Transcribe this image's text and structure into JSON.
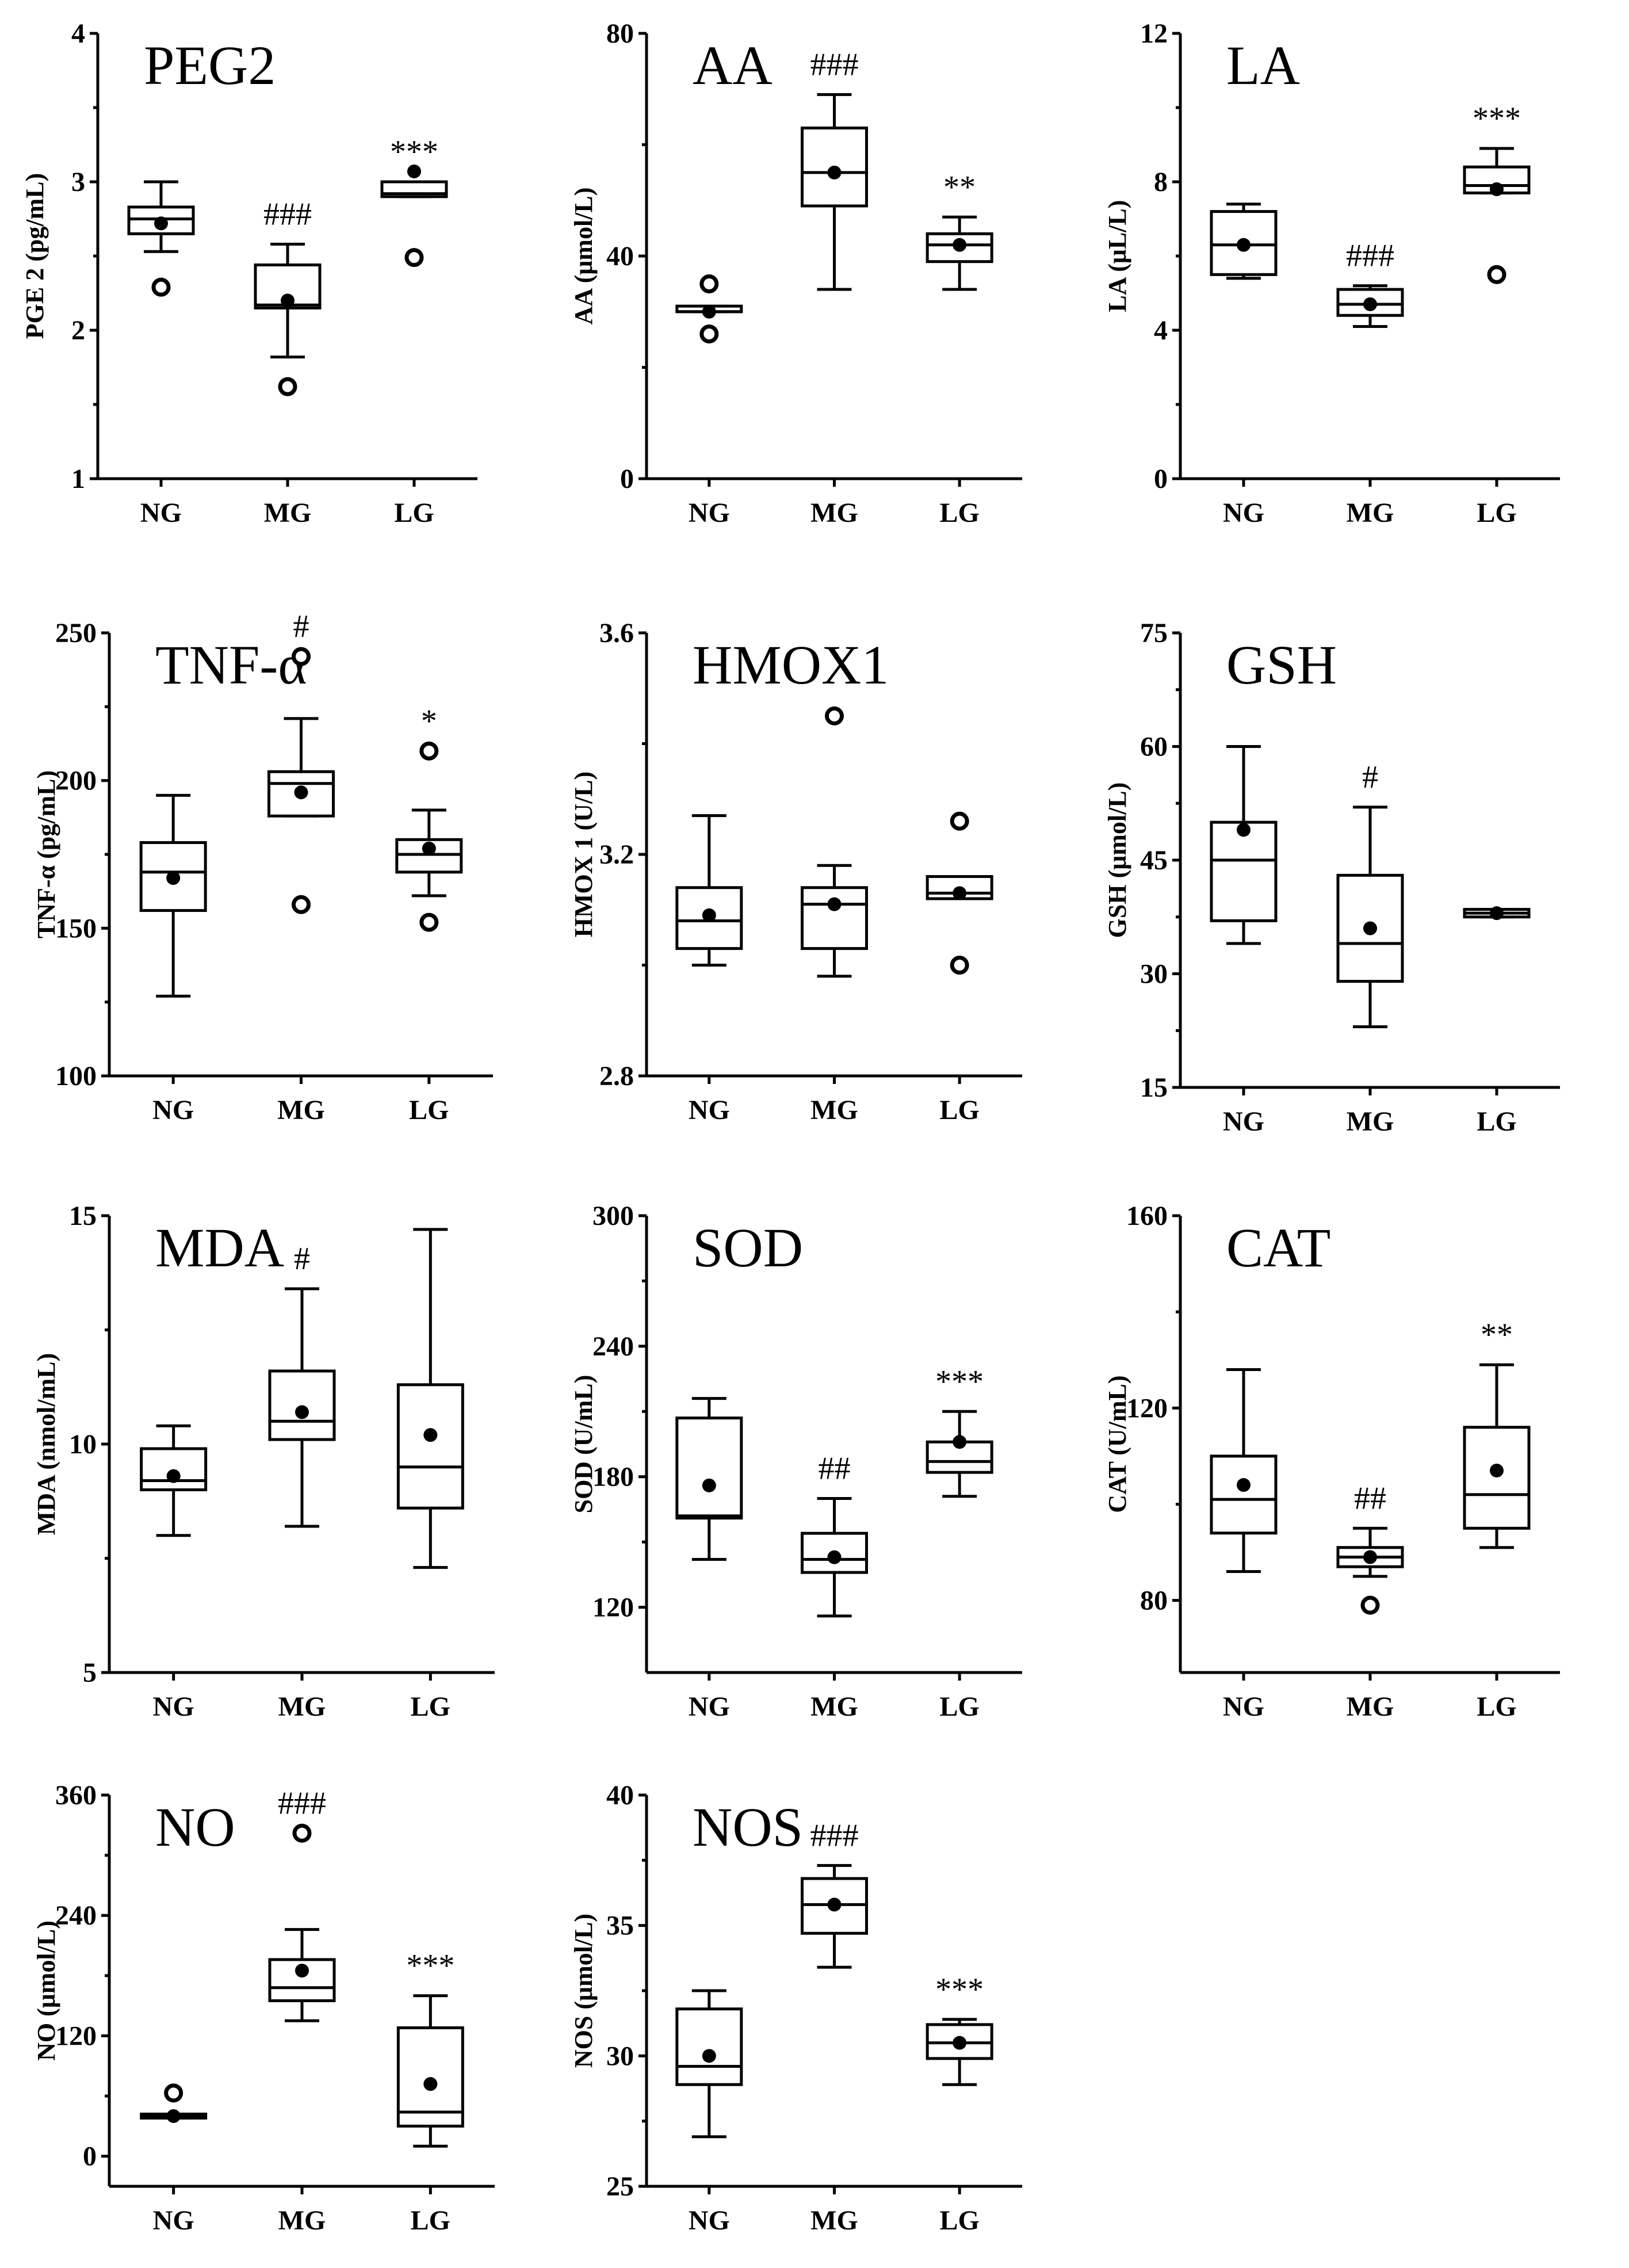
{
  "chart_data": [
    {
      "id": "peg2",
      "type": "box",
      "title": "PEG2",
      "ylabel": "PGE 2 (pg/mL)",
      "ylim": [
        1,
        4
      ],
      "yticks": [
        1,
        2,
        3,
        4
      ],
      "categories": [
        "NG",
        "MG",
        "LG"
      ],
      "groups": [
        {
          "min": 2.53,
          "q1": 2.65,
          "median": 2.75,
          "q3": 2.83,
          "max": 3.0,
          "mean": 2.72,
          "outliers": [
            2.29
          ],
          "sig": ""
        },
        {
          "min": 1.82,
          "q1": 2.15,
          "median": 2.17,
          "q3": 2.44,
          "max": 2.58,
          "mean": 2.2,
          "outliers": [
            1.62
          ],
          "sig": "###"
        },
        {
          "min": 2.9,
          "q1": 2.9,
          "median": 2.92,
          "q3": 3.0,
          "max": 3.0,
          "mean": 3.07,
          "outliers": [
            2.49
          ],
          "sig": "***"
        }
      ]
    },
    {
      "id": "aa",
      "type": "box",
      "title": "AA",
      "ylabel": "AA (μmol/L)",
      "ylim": [
        0,
        80
      ],
      "yticks": [
        0,
        40,
        80
      ],
      "categories": [
        "NG",
        "MG",
        "LG"
      ],
      "groups": [
        {
          "min": 30,
          "q1": 30,
          "median": 30,
          "q3": 31,
          "max": 31,
          "mean": 30,
          "outliers": [
            35,
            26
          ],
          "sig": ""
        },
        {
          "min": 34,
          "q1": 49,
          "median": 55,
          "q3": 63,
          "max": 69,
          "mean": 55,
          "outliers": [],
          "sig": "###"
        },
        {
          "min": 34,
          "q1": 39,
          "median": 42,
          "q3": 44,
          "max": 47,
          "mean": 42,
          "outliers": [],
          "sig": "**"
        }
      ]
    },
    {
      "id": "la",
      "type": "box",
      "title": "LA",
      "ylabel": "LA (μL/L)",
      "ylim": [
        0,
        12
      ],
      "yticks": [
        0,
        4,
        8,
        12
      ],
      "categories": [
        "NG",
        "MG",
        "LG"
      ],
      "groups": [
        {
          "min": 5.4,
          "q1": 5.5,
          "median": 6.3,
          "q3": 7.2,
          "max": 7.4,
          "mean": 6.3,
          "outliers": [],
          "sig": ""
        },
        {
          "min": 4.1,
          "q1": 4.4,
          "median": 4.7,
          "q3": 5.1,
          "max": 5.2,
          "mean": 4.7,
          "outliers": [],
          "sig": "###"
        },
        {
          "min": 7.7,
          "q1": 7.7,
          "median": 7.9,
          "q3": 8.4,
          "max": 8.9,
          "mean": 7.8,
          "outliers": [
            5.5
          ],
          "sig": "***"
        }
      ]
    },
    {
      "id": "tnf",
      "type": "box",
      "title": "TNF-α",
      "ylabel": "TNF-α (pg/mL)",
      "ylim": [
        100,
        250
      ],
      "yticks": [
        100,
        150,
        200,
        250
      ],
      "categories": [
        "NG",
        "MG",
        "LG"
      ],
      "groups": [
        {
          "min": 127,
          "q1": 156,
          "median": 169,
          "q3": 179,
          "max": 195,
          "mean": 167,
          "outliers": [],
          "sig": ""
        },
        {
          "min": 188,
          "q1": 188,
          "median": 199,
          "q3": 203,
          "max": 221,
          "mean": 196,
          "outliers": [
            242,
            158
          ],
          "sig": "#"
        },
        {
          "min": 161,
          "q1": 169,
          "median": 175,
          "q3": 180,
          "max": 190,
          "mean": 177,
          "outliers": [
            210,
            152
          ],
          "sig": "*"
        }
      ]
    },
    {
      "id": "hmox1",
      "type": "box",
      "title": "HMOX1",
      "ylabel": "HMOX 1 (U/L)",
      "ylim": [
        2.8,
        3.6
      ],
      "yticks": [
        2.8,
        3.2,
        3.6
      ],
      "categories": [
        "NG",
        "MG",
        "LG"
      ],
      "groups": [
        {
          "min": 3.0,
          "q1": 3.03,
          "median": 3.08,
          "q3": 3.14,
          "max": 3.27,
          "mean": 3.09,
          "outliers": [],
          "sig": ""
        },
        {
          "min": 2.98,
          "q1": 3.03,
          "median": 3.11,
          "q3": 3.14,
          "max": 3.18,
          "mean": 3.11,
          "outliers": [
            3.45
          ],
          "sig": ""
        },
        {
          "min": 3.12,
          "q1": 3.12,
          "median": 3.13,
          "q3": 3.16,
          "max": 3.16,
          "mean": 3.13,
          "outliers": [
            3.26,
            3.0
          ],
          "sig": ""
        }
      ]
    },
    {
      "id": "gsh",
      "type": "box",
      "title": "GSH",
      "ylabel": "GSH (μmol/L)",
      "ylim": [
        15,
        75
      ],
      "yticks": [
        15,
        30,
        45,
        60,
        75
      ],
      "categories": [
        "NG",
        "MG",
        "LG"
      ],
      "groups": [
        {
          "min": 34,
          "q1": 37,
          "median": 45,
          "q3": 50,
          "max": 60,
          "mean": 49,
          "outliers": [],
          "sig": ""
        },
        {
          "min": 23,
          "q1": 29,
          "median": 34,
          "q3": 43,
          "max": 52,
          "mean": 36,
          "outliers": [],
          "sig": "#"
        },
        {
          "min": 37.5,
          "q1": 37.5,
          "median": 38,
          "q3": 38.5,
          "max": 38.5,
          "mean": 38,
          "outliers": [],
          "sig": ""
        }
      ]
    },
    {
      "id": "mda",
      "type": "box",
      "title": "MDA",
      "ylabel": "MDA (nmol/mL)",
      "ylim": [
        5,
        15
      ],
      "yticks": [
        5,
        10,
        15
      ],
      "categories": [
        "NG",
        "MG",
        "LG"
      ],
      "groups": [
        {
          "min": 8,
          "q1": 9,
          "median": 9.2,
          "q3": 9.9,
          "max": 10.4,
          "mean": 9.3,
          "outliers": [],
          "sig": ""
        },
        {
          "min": 8.2,
          "q1": 10.1,
          "median": 10.5,
          "q3": 11.6,
          "max": 13.4,
          "mean": 10.7,
          "outliers": [],
          "sig": "#"
        },
        {
          "min": 7.3,
          "q1": 8.6,
          "median": 9.5,
          "q3": 11.3,
          "max": 14.7,
          "mean": 10.2,
          "outliers": [],
          "sig": ""
        }
      ]
    },
    {
      "id": "sod",
      "type": "box",
      "title": "SOD",
      "ylabel": "SOD (U/mL)",
      "ylim": [
        90,
        300
      ],
      "yticks": [
        120,
        180,
        240,
        300
      ],
      "categories": [
        "NG",
        "MG",
        "LG"
      ],
      "groups": [
        {
          "min": 142,
          "q1": 161,
          "median": 162,
          "q3": 207,
          "max": 216,
          "mean": 176,
          "outliers": [],
          "sig": ""
        },
        {
          "min": 116,
          "q1": 136,
          "median": 142,
          "q3": 154,
          "max": 170,
          "mean": 143,
          "outliers": [],
          "sig": "##"
        },
        {
          "min": 171,
          "q1": 182,
          "median": 187,
          "q3": 196,
          "max": 210,
          "mean": 196,
          "outliers": [],
          "sig": "***"
        }
      ]
    },
    {
      "id": "cat",
      "type": "box",
      "title": "CAT",
      "ylabel": "CAT (U/mL)",
      "ylim": [
        65,
        160
      ],
      "yticks": [
        80,
        120,
        160
      ],
      "categories": [
        "NG",
        "MG",
        "LG"
      ],
      "groups": [
        {
          "min": 86,
          "q1": 94,
          "median": 101,
          "q3": 110,
          "max": 128,
          "mean": 104,
          "outliers": [],
          "sig": ""
        },
        {
          "min": 85,
          "q1": 87,
          "median": 89,
          "q3": 91,
          "max": 95,
          "mean": 89,
          "outliers": [
            79
          ],
          "sig": "##"
        },
        {
          "min": 91,
          "q1": 95,
          "median": 102,
          "q3": 116,
          "max": 129,
          "mean": 107,
          "outliers": [],
          "sig": "**"
        }
      ]
    },
    {
      "id": "no",
      "type": "box",
      "title": "NO",
      "ylabel": "NO (μmol/L)",
      "ylim": [
        -30,
        360
      ],
      "yticks": [
        0,
        120,
        240,
        360
      ],
      "categories": [
        "NG",
        "MG",
        "LG"
      ],
      "groups": [
        {
          "min": 38,
          "q1": 38,
          "median": 40,
          "q3": 42,
          "max": 42,
          "mean": 40,
          "outliers": [
            63
          ],
          "sig": ""
        },
        {
          "min": 135,
          "q1": 155,
          "median": 168,
          "q3": 196,
          "max": 226,
          "mean": 185,
          "outliers": [
            322
          ],
          "sig": "###"
        },
        {
          "min": 10,
          "q1": 30,
          "median": 44,
          "q3": 128,
          "max": 160,
          "mean": 72,
          "outliers": [],
          "sig": "***"
        }
      ]
    },
    {
      "id": "nos",
      "type": "box",
      "title": "NOS",
      "ylabel": "NOS (μmol/L)",
      "ylim": [
        25,
        40
      ],
      "yticks": [
        25,
        30,
        35,
        40
      ],
      "categories": [
        "NG",
        "MG",
        "LG"
      ],
      "groups": [
        {
          "min": 26.9,
          "q1": 28.9,
          "median": 29.6,
          "q3": 31.8,
          "max": 32.5,
          "mean": 30.0,
          "outliers": [],
          "sig": ""
        },
        {
          "min": 33.4,
          "q1": 34.7,
          "median": 35.8,
          "q3": 36.8,
          "max": 37.3,
          "mean": 35.8,
          "outliers": [],
          "sig": "###"
        },
        {
          "min": 28.9,
          "q1": 29.9,
          "median": 30.5,
          "q3": 31.2,
          "max": 31.4,
          "mean": 30.5,
          "outliers": [],
          "sig": "***"
        }
      ]
    }
  ]
}
